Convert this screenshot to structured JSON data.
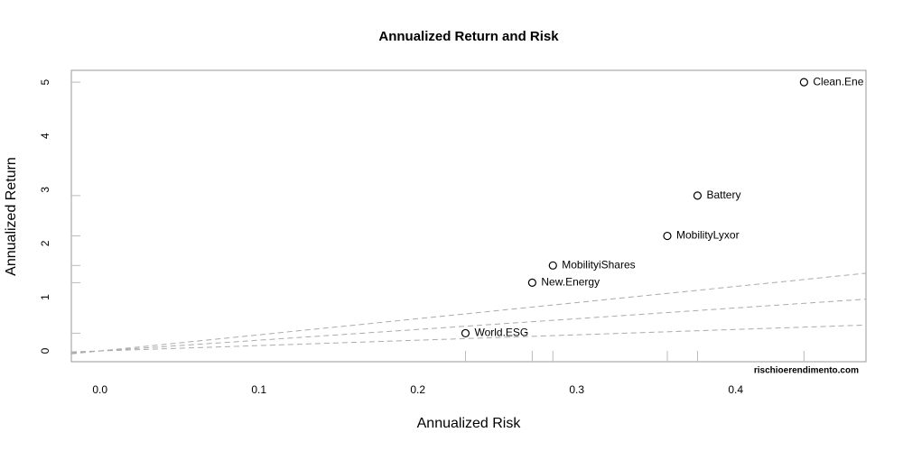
{
  "chart_data": {
    "type": "scatter",
    "title": "Annualized Return and Risk",
    "x_label": "Annualized Risk",
    "y_label": "Annualized Return",
    "labels": [
      "Clean.Ene",
      "Battery",
      "MobilityLyxor",
      "MobilityiShares",
      "New.Energy",
      "World.ESG"
    ],
    "x": [
      0.443,
      0.376,
      0.357,
      0.285,
      0.272,
      0.23
    ],
    "values": [
      5.0,
      2.89,
      2.14,
      1.59,
      1.27,
      0.33
    ],
    "color": "#000000",
    "sharpe_lines": [
      1,
      2,
      3
    ],
    "xlim": [
      -0.018,
      0.482
    ],
    "ylim": [
      -0.2,
      5.22
    ],
    "xticks": [
      {
        "value": 0,
        "label": "0.0"
      },
      0.1,
      0.2,
      0.3,
      0.4
    ],
    "yticks": [
      0,
      1,
      2,
      3,
      4,
      5
    ],
    "watermark": "rischioerendimento.com"
  }
}
